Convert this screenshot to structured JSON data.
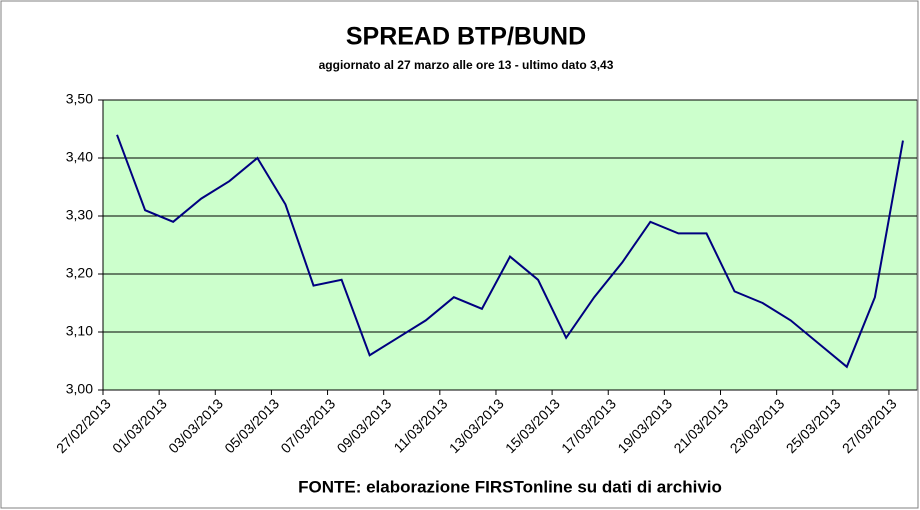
{
  "chart_data": {
    "type": "line",
    "title": "SPREAD  BTP/BUND",
    "subtitle": "aggiornato al 27 marzo alle ore 13 - ultimo dato 3,43",
    "source": "FONTE: elaborazione FIRSTonline su dati di archivio",
    "categories": [
      "27/02/2013",
      null,
      "01/03/2013",
      null,
      "03/03/2013",
      null,
      "05/03/2013",
      null,
      "07/03/2013",
      null,
      "09/03/2013",
      null,
      "11/03/2013",
      null,
      "13/03/2013",
      null,
      "15/03/2013",
      null,
      "17/03/2013",
      null,
      "19/03/2013",
      null,
      "21/03/2013",
      null,
      "23/03/2013",
      null,
      "25/03/2013",
      null,
      "27/03/2013"
    ],
    "values": [
      3.44,
      3.31,
      3.29,
      3.33,
      3.36,
      3.4,
      3.32,
      3.18,
      3.19,
      3.06,
      3.09,
      3.12,
      3.16,
      3.14,
      3.23,
      3.19,
      3.09,
      3.16,
      3.22,
      3.29,
      3.27,
      3.27,
      3.17,
      3.15,
      3.12,
      3.08,
      3.04,
      3.16,
      3.43
    ],
    "color": "#000080",
    "ylim": [
      3.0,
      3.5
    ],
    "yticks": [
      {
        "value": 3.0,
        "label": "3,00"
      },
      {
        "value": 3.1,
        "label": "3,10"
      },
      {
        "value": 3.2,
        "label": "3,20"
      },
      {
        "value": 3.3,
        "label": "3,30"
      },
      {
        "value": 3.4,
        "label": "3,40"
      },
      {
        "value": 3.5,
        "label": "3,50"
      }
    ],
    "grid": true
  }
}
